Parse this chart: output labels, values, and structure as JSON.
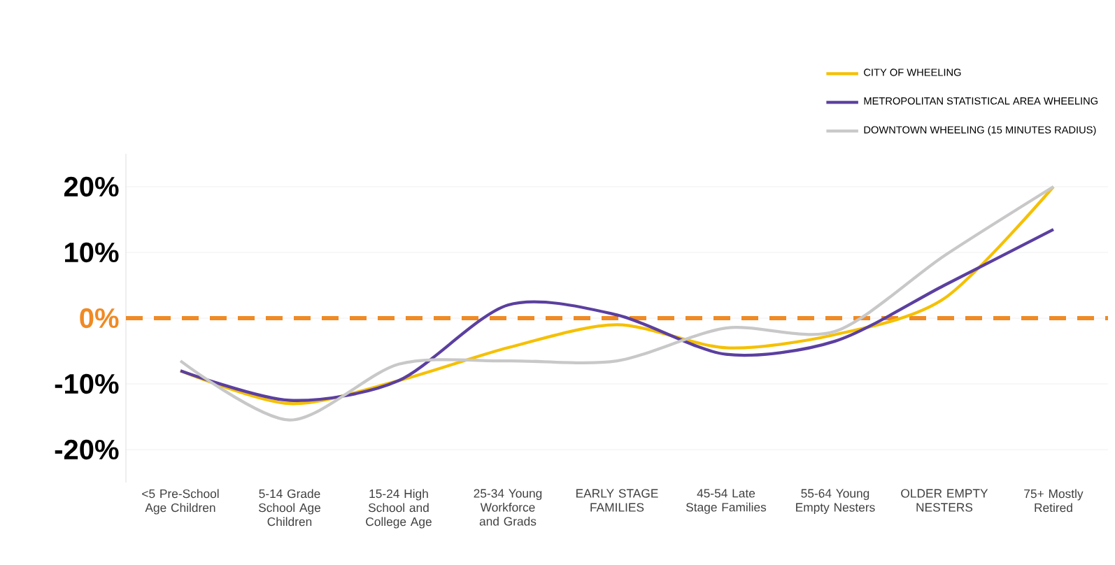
{
  "chart_data": {
    "type": "line",
    "categories": [
      "<5 Pre-School Age Children",
      "5-14 Grade School Age Children",
      "15-24 High School and College Age",
      "25-34 Young Workforce and Grads",
      "EARLY STAGE FAMILIES",
      "45-54 Late Stage Families",
      "55-64 Young Empty Nesters",
      "OLDER EMPTY NESTERS",
      "75+ Mostly Retired"
    ],
    "series": [
      {
        "name": "CITY OF WHEELING",
        "color": "#f5c000",
        "values": [
          -8,
          -13,
          -9.5,
          -4.5,
          -1,
          -4.5,
          -2.5,
          3,
          20
        ]
      },
      {
        "name": "METROPOLITAN STATISTICAL AREA WHEELING",
        "color": "#5b3fa0",
        "values": [
          -8,
          -12.5,
          -9.5,
          2,
          0.5,
          -5.5,
          -3.5,
          5,
          13.5
        ]
      },
      {
        "name": "DOWNTOWN WHEELING (15 MINUTES RADIUS)",
        "color": "#c8c8c8",
        "values": [
          -6.5,
          -15.5,
          -7,
          -6.5,
          -6.5,
          -1.5,
          -2,
          9.5,
          20
        ]
      }
    ],
    "ylim": [
      -25,
      25
    ],
    "yticks": [
      {
        "value": -20,
        "label": "-20%"
      },
      {
        "value": -10,
        "label": "-10%"
      },
      {
        "value": 0,
        "label": "0%"
      },
      {
        "value": 10,
        "label": "10%"
      },
      {
        "value": 20,
        "label": "20%"
      }
    ],
    "ref_lines": [
      {
        "axis": "y",
        "value": 0,
        "color": "#f08a24",
        "line_style": "dashed"
      }
    ],
    "grid": "y",
    "legend": "top right",
    "marker": "none",
    "line_style": "solid"
  }
}
